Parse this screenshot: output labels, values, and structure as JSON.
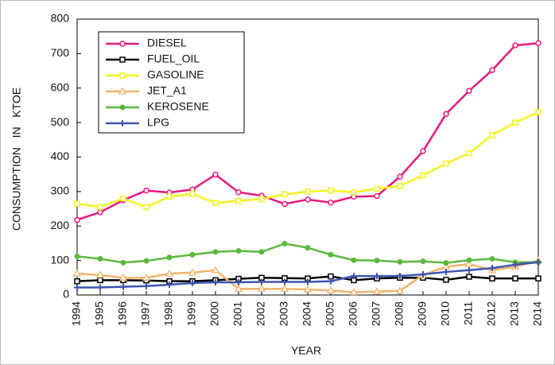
{
  "chart_data": {
    "type": "line",
    "x_label": "YEAR",
    "y_label": "CONSUMPTION   IN   KTOE",
    "categories": [
      "1994",
      "1995",
      "1996",
      "1997",
      "1998",
      "1999",
      "2000",
      "2001",
      "2002",
      "2003",
      "2004",
      "2005",
      "2006",
      "2007",
      "2008",
      "2009",
      "2010",
      "2011",
      "2012",
      "2013",
      "2014"
    ],
    "ylim": [
      0,
      800
    ],
    "yticks": [
      0,
      100,
      200,
      300,
      400,
      500,
      600,
      700,
      800
    ],
    "legend": "upper-left",
    "series": [
      {
        "name": "DIESEL",
        "color": "#e6197f",
        "marker": "circle",
        "values": [
          218,
          240,
          275,
          303,
          297,
          306,
          349,
          298,
          288,
          264,
          277,
          268,
          285,
          287,
          343,
          417,
          525,
          592,
          652,
          724,
          730
        ]
      },
      {
        "name": "FUEL_OIL",
        "color": "#000000",
        "marker": "square",
        "values": [
          40,
          43,
          43,
          42,
          40,
          40,
          43,
          47,
          50,
          49,
          48,
          54,
          43,
          48,
          50,
          50,
          44,
          53,
          48,
          48,
          48
        ]
      },
      {
        "name": "GASOLINE",
        "color": "#f2f21c",
        "marker": "square",
        "values": [
          265,
          255,
          280,
          255,
          285,
          293,
          267,
          273,
          278,
          292,
          300,
          303,
          298,
          308,
          316,
          347,
          381,
          411,
          464,
          500,
          530
        ]
      },
      {
        "name": "JET_A1",
        "color": "#f5b26b",
        "marker": "triangle",
        "values": [
          62,
          58,
          50,
          50,
          62,
          65,
          72,
          18,
          18,
          18,
          16,
          13,
          8,
          10,
          12,
          58,
          82,
          90,
          72,
          82,
          100
        ]
      },
      {
        "name": "KEROSENE",
        "color": "#5ab83c",
        "marker": "dot",
        "values": [
          112,
          105,
          94,
          99,
          109,
          117,
          125,
          128,
          125,
          149,
          137,
          117,
          101,
          100,
          96,
          98,
          93,
          101,
          105,
          95,
          95
        ]
      },
      {
        "name": "LPG",
        "color": "#3d55b0",
        "marker": "plus",
        "values": [
          22,
          22,
          24,
          26,
          30,
          35,
          37,
          37,
          38,
          38,
          38,
          40,
          55,
          55,
          55,
          60,
          67,
          72,
          78,
          88,
          95
        ]
      }
    ]
  }
}
